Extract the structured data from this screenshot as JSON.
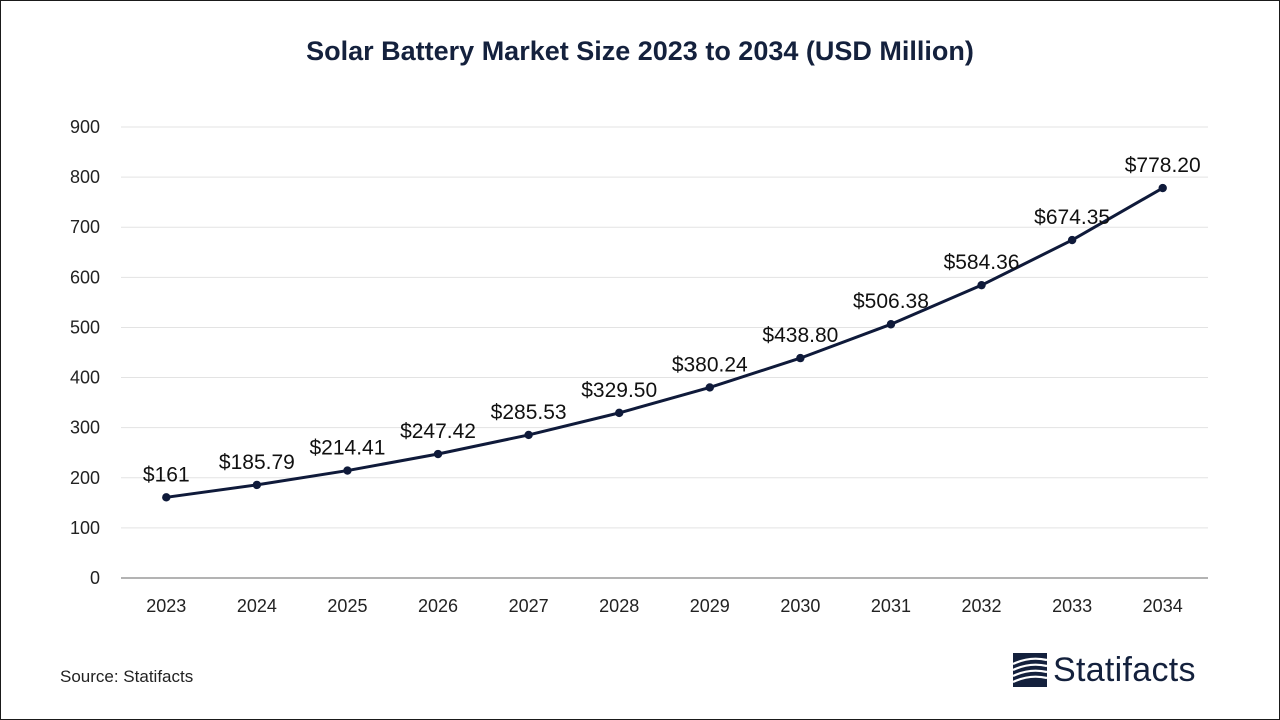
{
  "chart_data": {
    "type": "line",
    "title": "Solar Battery Market Size 2023 to 2034 (USD Million)",
    "xlabel": "",
    "ylabel": "",
    "categories": [
      "2023",
      "2024",
      "2025",
      "2026",
      "2027",
      "2028",
      "2029",
      "2030",
      "2031",
      "2032",
      "2033",
      "2034"
    ],
    "values": [
      161,
      185.79,
      214.41,
      247.42,
      285.53,
      329.5,
      380.24,
      438.8,
      506.38,
      584.36,
      674.35,
      778.2
    ],
    "data_labels": [
      "$161",
      "$185.79",
      "$214.41",
      "$247.42",
      "$285.53",
      "$329.50",
      "$380.24",
      "$438.80",
      "$506.38",
      "$584.36",
      "$674.35",
      "$778.20"
    ],
    "ylim": [
      0,
      900
    ],
    "yticks": [
      0,
      100,
      200,
      300,
      400,
      500,
      600,
      700,
      800,
      900
    ],
    "grid": true,
    "line_color": "#0f1a3a"
  },
  "footer": {
    "source": "Source: Statifacts",
    "brand": "Statifacts"
  }
}
